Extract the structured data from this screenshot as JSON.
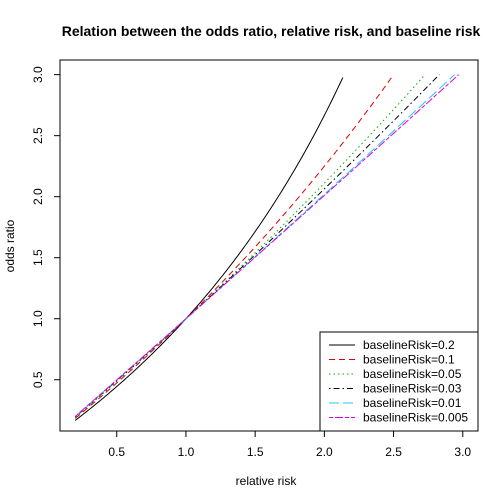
{
  "chart_data": {
    "type": "line",
    "title": "Relation between the odds ratio, relative risk, and baseline risk",
    "xlabel": "relative risk",
    "ylabel": "odds ratio",
    "xlim": [
      0.2,
      3.0
    ],
    "ylim": [
      0.2,
      3.0
    ],
    "xticks": [
      0.5,
      1.0,
      1.5,
      2.0,
      2.5,
      3.0
    ],
    "xtick_labels": [
      "0.5",
      "1.0",
      "1.5",
      "2.0",
      "2.5",
      "3.0"
    ],
    "yticks": [
      0.5,
      1.0,
      1.5,
      2.0,
      2.5,
      3.0
    ],
    "ytick_labels": [
      "0.5",
      "1.0",
      "1.5",
      "2.0",
      "2.5",
      "3.0"
    ],
    "grid": false,
    "legend_position": "bottom-right",
    "series": [
      {
        "name": "baselineRisk=0.2",
        "baseline": 0.2,
        "color": "#000000",
        "dash": "solid",
        "x": [
          0.2,
          0.4,
          0.6,
          0.8,
          1.0,
          1.2,
          1.4,
          1.6,
          1.8,
          2.0,
          2.14
        ],
        "y": [
          0.17,
          0.35,
          0.55,
          0.76,
          1.0,
          1.3,
          1.63,
          2.0,
          2.45,
          3.0,
          3.0
        ]
      },
      {
        "name": "baselineRisk=0.1",
        "baseline": 0.1,
        "color": "#df0000",
        "dash": "dashed",
        "x": [
          0.2,
          0.5,
          1.0,
          1.5,
          2.0,
          2.5
        ],
        "y": [
          0.18,
          0.47,
          1.0,
          1.6,
          2.25,
          3.0
        ]
      },
      {
        "name": "baselineRisk=0.05",
        "baseline": 0.05,
        "color": "#00b000",
        "dash": "dotted",
        "x": [
          0.2,
          0.5,
          1.0,
          1.5,
          2.0,
          2.5,
          2.75
        ],
        "y": [
          0.19,
          0.49,
          1.0,
          1.55,
          2.11,
          2.71,
          3.0
        ]
      },
      {
        "name": "baselineRisk=0.03",
        "baseline": 0.03,
        "color": "#000000",
        "dash": "dotdash",
        "x": [
          0.2,
          0.5,
          1.0,
          1.5,
          2.0,
          2.5,
          2.84
        ],
        "y": [
          0.19,
          0.49,
          1.0,
          1.52,
          2.06,
          2.61,
          3.0
        ]
      },
      {
        "name": "baselineRisk=0.01",
        "baseline": 0.01,
        "color": "#1ec8ff",
        "dash": "longdash",
        "x": [
          0.2,
          0.5,
          1.0,
          1.5,
          2.0,
          2.5,
          2.94
        ],
        "y": [
          0.2,
          0.5,
          1.0,
          1.51,
          2.02,
          2.54,
          3.0
        ]
      },
      {
        "name": "baselineRisk=0.005",
        "baseline": 0.005,
        "color": "#df00df",
        "dash": "twodash",
        "x": [
          0.2,
          0.5,
          1.0,
          1.5,
          2.0,
          2.5,
          2.97
        ],
        "y": [
          0.2,
          0.5,
          1.0,
          1.5,
          2.01,
          2.52,
          3.0
        ]
      }
    ]
  }
}
